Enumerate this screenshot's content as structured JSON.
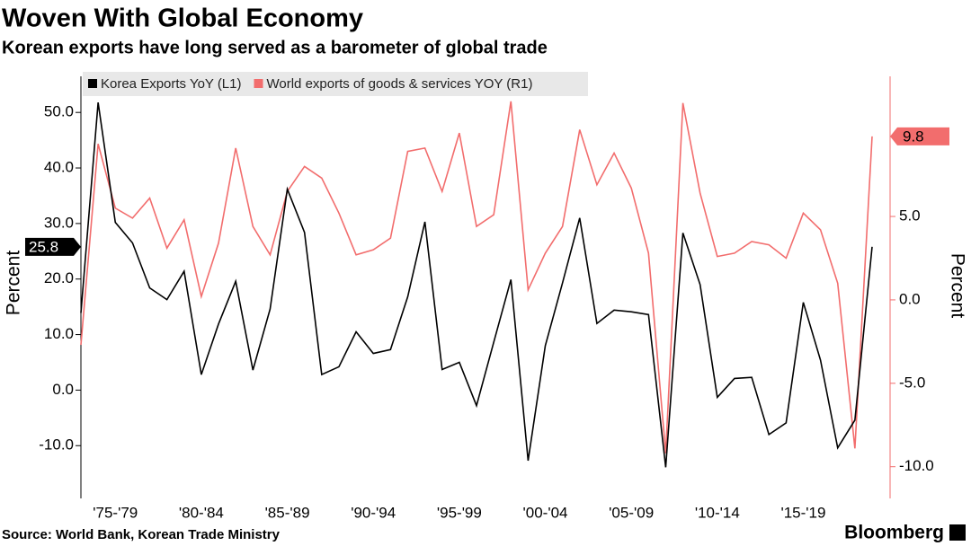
{
  "chart_data": {
    "type": "line",
    "title": "Woven With Global Economy",
    "subtitle": "Korean exports have long served as a barometer of global trade",
    "source": "Source: World Bank, Korean Trade Ministry",
    "brand": "Bloomberg",
    "ylabel": "Percent",
    "y2label": "Percent",
    "legend": "top-left",
    "categories": [
      null,
      null,
      "'75-'79",
      null,
      null,
      null,
      null,
      "'80-'84",
      null,
      null,
      null,
      null,
      "'85-'89",
      null,
      null,
      null,
      null,
      "'90-'94",
      null,
      null,
      null,
      null,
      "'95-'99",
      null,
      null,
      null,
      null,
      "'00-'04",
      null,
      null,
      null,
      null,
      "'05-'09",
      null,
      null,
      null,
      null,
      "'10-'14",
      null,
      null,
      null,
      null,
      "'15-'19",
      null,
      null,
      null,
      null
    ],
    "series": [
      {
        "name": "Korea Exports YoY (L1)",
        "color": "#000000",
        "values": [
          13.9,
          51.8,
          30.2,
          26.5,
          18.4,
          16.3,
          21.4,
          2.8,
          11.9,
          19.6,
          3.6,
          14.6,
          36.2,
          28.4,
          2.8,
          4.2,
          10.5,
          6.6,
          7.3,
          16.8,
          30.3,
          3.7,
          5.0,
          -2.8,
          8.6,
          19.9,
          -12.7,
          8.0,
          19.3,
          31.0,
          12.0,
          14.4,
          14.1,
          13.6,
          -13.9,
          28.3,
          19.0,
          -1.3,
          2.1,
          2.3,
          -8.0,
          -5.9,
          15.8,
          5.4,
          -10.4,
          -5.4,
          25.8
        ]
      },
      {
        "name": "World exports of goods & services YOY (R1)",
        "color": "#f26d6d",
        "axis": "y2",
        "values": [
          -2.7,
          9.35,
          5.5,
          4.9,
          6.1,
          3.1,
          4.8,
          0.2,
          3.4,
          9.1,
          4.4,
          2.7,
          6.5,
          8.0,
          7.3,
          5.2,
          2.7,
          3.0,
          3.7,
          8.9,
          9.1,
          6.5,
          10.0,
          4.4,
          5.1,
          11.9,
          0.6,
          2.8,
          4.4,
          10.2,
          6.9,
          8.8,
          6.7,
          2.8,
          -9.2,
          11.8,
          6.4,
          2.6,
          2.8,
          3.5,
          3.3,
          2.5,
          5.2,
          4.2,
          1.0,
          -8.9,
          9.8
        ]
      }
    ],
    "ylim": [
      -19.5,
      56.5
    ],
    "yticks": [
      {
        "value": -10,
        "label": "-10.0"
      },
      {
        "value": 0,
        "label": "0.0"
      },
      {
        "value": 10,
        "label": "10.0"
      },
      {
        "value": 20,
        "label": "20.0"
      },
      {
        "value": 30,
        "label": "30.0"
      },
      {
        "value": 40,
        "label": "40.0"
      },
      {
        "value": 50,
        "label": "50.0"
      }
    ],
    "y2lim": [
      -11.9,
      13.4
    ],
    "y2ticks": [
      {
        "value": -10,
        "label": "-10.0"
      },
      {
        "value": -5,
        "label": "-5.0"
      },
      {
        "value": 0,
        "label": "0.0"
      },
      {
        "value": 5,
        "label": "5.0"
      }
    ]
  }
}
